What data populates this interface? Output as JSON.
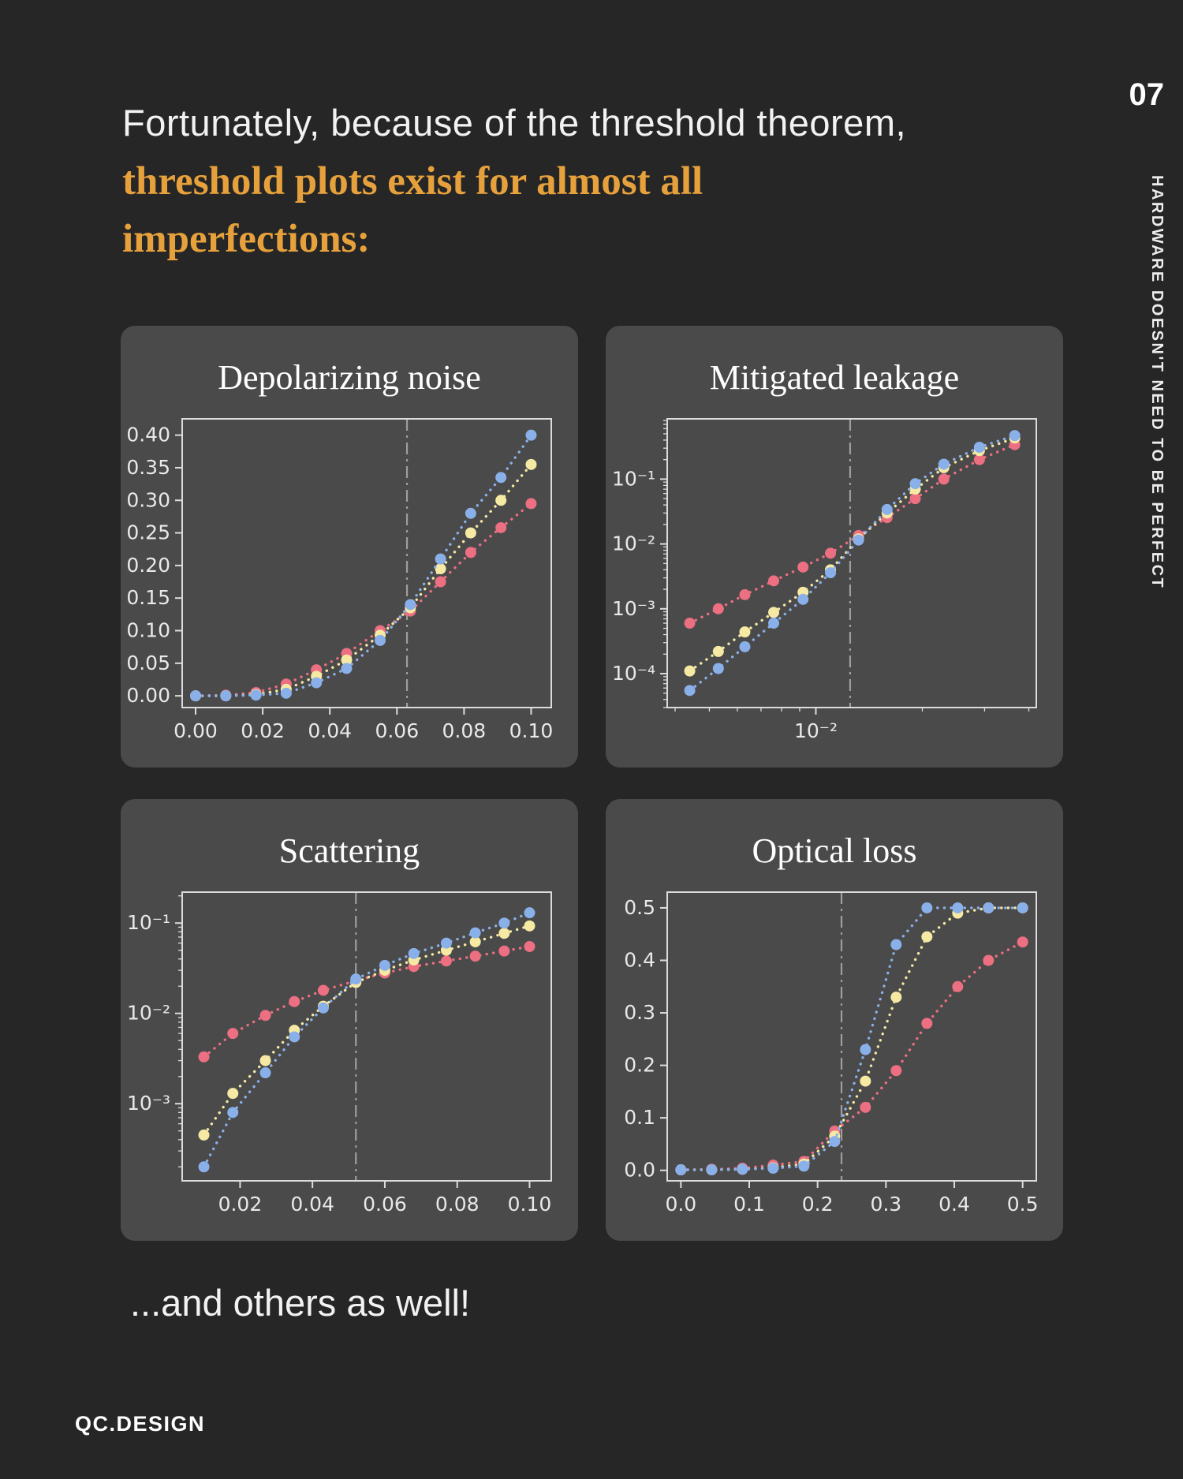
{
  "page": {
    "background": "#262626",
    "page_number": "07",
    "sidebar_vertical_text": "HARDWARE DOESN'T NEED TO BE PERFECT",
    "brand": "QC.DESIGN"
  },
  "header": {
    "line1": "Fortunately, because of the threshold theorem,",
    "line2": "threshold plots exist for almost all",
    "line3": "imperfections:",
    "accent_color": "#E7A13C"
  },
  "footer": {
    "text": "...and others as well!"
  },
  "colors": {
    "card_bg": "#4a4a4a",
    "axis": "#dcdcdc",
    "tick_label": "#e9e9e9",
    "threshold_line": "#9e9e9e",
    "series_blue": "#8ab0ea",
    "series_yellow": "#f6e9a4",
    "series_red": "#ec6f82"
  },
  "chart_data": [
    {
      "type": "line",
      "title": "Depolarizing noise",
      "xlabel": "",
      "ylabel": "",
      "grid": false,
      "legend": null,
      "xscale": "linear",
      "yscale": "linear",
      "xlim": [
        -0.004,
        0.106
      ],
      "ylim": [
        -0.018,
        0.425
      ],
      "threshold_x": 0.063,
      "xticks": [
        {
          "v": 0.0,
          "label": "0.00"
        },
        {
          "v": 0.02,
          "label": "0.02"
        },
        {
          "v": 0.04,
          "label": "0.04"
        },
        {
          "v": 0.06,
          "label": "0.06"
        },
        {
          "v": 0.08,
          "label": "0.08"
        },
        {
          "v": 0.1,
          "label": "0.10"
        }
      ],
      "yticks": [
        {
          "v": 0.0,
          "label": "0.00"
        },
        {
          "v": 0.05,
          "label": "0.05"
        },
        {
          "v": 0.1,
          "label": "0.10"
        },
        {
          "v": 0.15,
          "label": "0.15"
        },
        {
          "v": 0.2,
          "label": "0.20"
        },
        {
          "v": 0.25,
          "label": "0.25"
        },
        {
          "v": 0.3,
          "label": "0.30"
        },
        {
          "v": 0.35,
          "label": "0.35"
        },
        {
          "v": 0.4,
          "label": "0.40"
        }
      ],
      "x": [
        0.0,
        0.009,
        0.018,
        0.027,
        0.036,
        0.045,
        0.055,
        0.064,
        0.073,
        0.082,
        0.091,
        0.1
      ],
      "series": [
        {
          "name": "red",
          "color": "#ec6f82",
          "values": [
            0.0,
            0.001,
            0.005,
            0.018,
            0.04,
            0.065,
            0.1,
            0.13,
            0.175,
            0.22,
            0.258,
            0.295
          ]
        },
        {
          "name": "yellow",
          "color": "#f6e9a4",
          "values": [
            0.0,
            0.0,
            0.002,
            0.01,
            0.03,
            0.055,
            0.093,
            0.135,
            0.195,
            0.25,
            0.3,
            0.355
          ]
        },
        {
          "name": "blue",
          "color": "#8ab0ea",
          "values": [
            0.0,
            0.0,
            0.001,
            0.004,
            0.02,
            0.042,
            0.085,
            0.14,
            0.21,
            0.28,
            0.335,
            0.4
          ]
        }
      ]
    },
    {
      "type": "line",
      "title": "Mitigated leakage",
      "xlabel": "",
      "ylabel": "",
      "grid": false,
      "legend": null,
      "xscale": "log",
      "yscale": "log",
      "xlim": [
        0.0038,
        0.042
      ],
      "ylim": [
        3e-05,
        0.85
      ],
      "threshold_x": 0.0125,
      "xticks": [
        {
          "v": 0.01,
          "label": "10⁻²"
        }
      ],
      "yticks": [
        {
          "v": 0.1,
          "label": "10⁻¹"
        },
        {
          "v": 0.01,
          "label": "10⁻²"
        },
        {
          "v": 0.001,
          "label": "10⁻³"
        },
        {
          "v": 0.0001,
          "label": "10⁻⁴"
        }
      ],
      "x": [
        0.0044,
        0.0053,
        0.0063,
        0.0076,
        0.0092,
        0.011,
        0.0132,
        0.0159,
        0.0191,
        0.023,
        0.029,
        0.0365
      ],
      "series": [
        {
          "name": "red",
          "color": "#ec6f82",
          "values": [
            0.0006,
            0.001,
            0.00165,
            0.0027,
            0.0044,
            0.0072,
            0.0135,
            0.0255,
            0.05,
            0.1,
            0.2,
            0.34
          ]
        },
        {
          "name": "yellow",
          "color": "#f6e9a4",
          "values": [
            0.00011,
            0.00022,
            0.00044,
            0.00088,
            0.0018,
            0.004,
            0.012,
            0.03,
            0.07,
            0.15,
            0.275,
            0.43
          ]
        },
        {
          "name": "blue",
          "color": "#8ab0ea",
          "values": [
            5.5e-05,
            0.00012,
            0.00026,
            0.0006,
            0.0014,
            0.0036,
            0.0115,
            0.034,
            0.085,
            0.17,
            0.31,
            0.47
          ]
        }
      ]
    },
    {
      "type": "line",
      "title": "Scattering",
      "xlabel": "",
      "ylabel": "",
      "grid": false,
      "legend": null,
      "xscale": "linear",
      "yscale": "log",
      "xlim": [
        0.004,
        0.106
      ],
      "ylim": [
        0.00014,
        0.22
      ],
      "threshold_x": 0.052,
      "xticks": [
        {
          "v": 0.02,
          "label": "0.02"
        },
        {
          "v": 0.04,
          "label": "0.04"
        },
        {
          "v": 0.06,
          "label": "0.06"
        },
        {
          "v": 0.08,
          "label": "0.08"
        },
        {
          "v": 0.1,
          "label": "0.10"
        }
      ],
      "yticks": [
        {
          "v": 0.1,
          "label": "10⁻¹"
        },
        {
          "v": 0.01,
          "label": "10⁻²"
        },
        {
          "v": 0.001,
          "label": "10⁻³"
        }
      ],
      "x": [
        0.01,
        0.018,
        0.027,
        0.035,
        0.043,
        0.052,
        0.06,
        0.068,
        0.077,
        0.085,
        0.093,
        0.1
      ],
      "series": [
        {
          "name": "red",
          "color": "#ec6f82",
          "values": [
            0.0033,
            0.006,
            0.0095,
            0.0135,
            0.018,
            0.023,
            0.028,
            0.033,
            0.038,
            0.043,
            0.049,
            0.055
          ]
        },
        {
          "name": "yellow",
          "color": "#f6e9a4",
          "values": [
            0.00045,
            0.0013,
            0.003,
            0.0065,
            0.012,
            0.022,
            0.03,
            0.039,
            0.05,
            0.062,
            0.077,
            0.093
          ]
        },
        {
          "name": "blue",
          "color": "#8ab0ea",
          "values": [
            0.0002,
            0.0008,
            0.0022,
            0.0055,
            0.0115,
            0.024,
            0.034,
            0.046,
            0.06,
            0.078,
            0.1,
            0.13
          ]
        }
      ]
    },
    {
      "type": "line",
      "title": "Optical loss",
      "xlabel": "",
      "ylabel": "",
      "grid": false,
      "legend": null,
      "xscale": "linear",
      "yscale": "linear",
      "xlim": [
        -0.02,
        0.52
      ],
      "ylim": [
        -0.02,
        0.53
      ],
      "threshold_x": 0.235,
      "xticks": [
        {
          "v": 0.0,
          "label": "0.0"
        },
        {
          "v": 0.1,
          "label": "0.1"
        },
        {
          "v": 0.2,
          "label": "0.2"
        },
        {
          "v": 0.3,
          "label": "0.3"
        },
        {
          "v": 0.4,
          "label": "0.4"
        },
        {
          "v": 0.5,
          "label": "0.5"
        }
      ],
      "yticks": [
        {
          "v": 0.0,
          "label": "0.0"
        },
        {
          "v": 0.1,
          "label": "0.1"
        },
        {
          "v": 0.2,
          "label": "0.2"
        },
        {
          "v": 0.3,
          "label": "0.3"
        },
        {
          "v": 0.4,
          "label": "0.4"
        },
        {
          "v": 0.5,
          "label": "0.5"
        }
      ],
      "x": [
        0.0,
        0.045,
        0.09,
        0.135,
        0.18,
        0.225,
        0.27,
        0.315,
        0.36,
        0.405,
        0.45,
        0.5
      ],
      "series": [
        {
          "name": "red",
          "color": "#ec6f82",
          "values": [
            0.001,
            0.002,
            0.004,
            0.01,
            0.017,
            0.075,
            0.12,
            0.19,
            0.28,
            0.35,
            0.4,
            0.435
          ]
        },
        {
          "name": "yellow",
          "color": "#f6e9a4",
          "values": [
            0.001,
            0.001,
            0.002,
            0.005,
            0.012,
            0.065,
            0.17,
            0.33,
            0.445,
            0.49,
            0.5,
            0.5
          ]
        },
        {
          "name": "blue",
          "color": "#8ab0ea",
          "values": [
            0.001,
            0.001,
            0.002,
            0.004,
            0.008,
            0.055,
            0.23,
            0.43,
            0.5,
            0.5,
            0.5,
            0.5
          ]
        }
      ]
    }
  ]
}
